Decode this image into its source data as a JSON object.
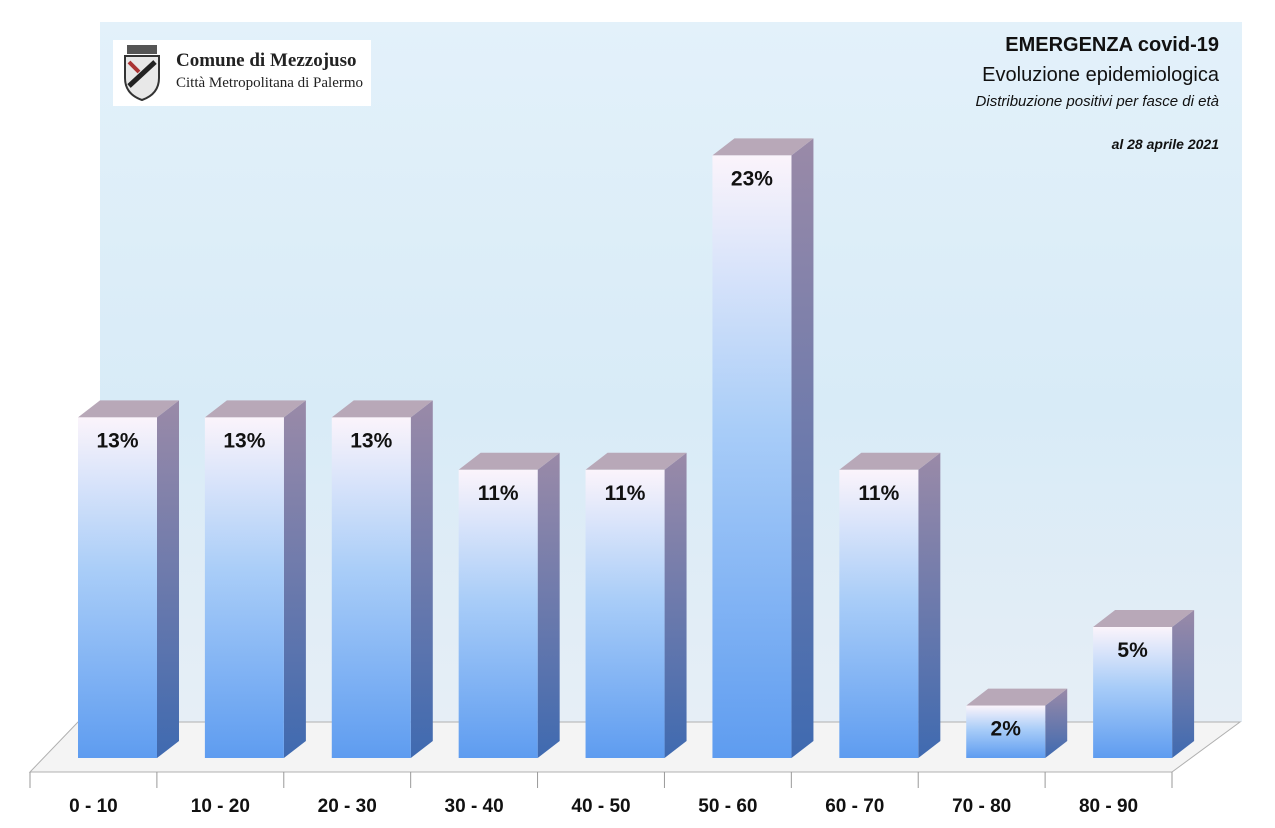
{
  "header": {
    "title": "EMERGENZA covid-19",
    "subtitle": "Evoluzione epidemiologica",
    "caption": "Distribuzione positivi per fasce di età",
    "date": "al 28 aprile 2021"
  },
  "logo": {
    "title": "Comune di Mezzojuso",
    "subtitle": "Città Metropolitana di Palermo"
  },
  "colors": {
    "bar_top": "#fbf4fb",
    "bar_bottom": "#5e9cf0",
    "bar_side": "#3f6ab0",
    "bar_cap": "#b8a8b8"
  },
  "chart_data": {
    "type": "bar",
    "title": "",
    "xlabel": "",
    "ylabel": "",
    "categories": [
      "0 - 10",
      "10 - 20",
      "20 - 30",
      "30 - 40",
      "40 - 50",
      "50 - 60",
      "60 - 70",
      "70 - 80",
      "80 - 90"
    ],
    "values": [
      13,
      13,
      13,
      11,
      11,
      23,
      11,
      2,
      5
    ],
    "labels": [
      "13%",
      "13%",
      "13%",
      "11%",
      "11%",
      "23%",
      "11%",
      "2%",
      "5%"
    ],
    "ylim": [
      0,
      25
    ],
    "grid": false,
    "legend": "none"
  }
}
